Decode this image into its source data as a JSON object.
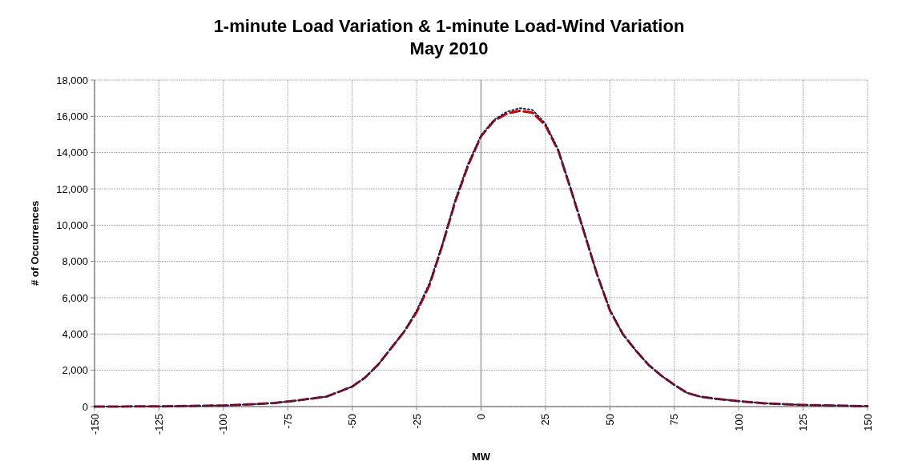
{
  "chart_data": {
    "type": "line",
    "title": "1-minute Load Variation & 1-minute Load-Wind Variation",
    "subtitle": "May 2010",
    "xlabel": "MW",
    "ylabel": "# of Occurrences",
    "x": [
      -150,
      -125,
      -100,
      -90,
      -80,
      -75,
      -70,
      -60,
      -50,
      -45,
      -40,
      -35,
      -30,
      -25,
      -20,
      -15,
      -10,
      -5,
      0,
      5,
      10,
      15,
      20,
      25,
      30,
      35,
      40,
      45,
      50,
      55,
      60,
      65,
      70,
      75,
      80,
      85,
      90,
      100,
      110,
      125,
      150
    ],
    "series": [
      {
        "color": "#cc0000",
        "line_style": "dashed",
        "values": [
          0,
          10,
          60,
          120,
          200,
          280,
          360,
          550,
          1100,
          1600,
          2300,
          3200,
          4100,
          5200,
          6700,
          8900,
          11300,
          13300,
          14900,
          15750,
          16150,
          16300,
          16200,
          15500,
          14100,
          11900,
          9600,
          7300,
          5300,
          4000,
          3100,
          2300,
          1700,
          1200,
          750,
          550,
          450,
          300,
          180,
          90,
          20
        ]
      },
      {
        "color": "#0a2a66",
        "line_style": "dotted",
        "values": [
          0,
          10,
          60,
          120,
          200,
          280,
          360,
          550,
          1100,
          1600,
          2300,
          3200,
          4100,
          5300,
          6800,
          8950,
          11400,
          13400,
          14950,
          15800,
          16250,
          16450,
          16350,
          15600,
          14150,
          11950,
          9650,
          7300,
          5350,
          4000,
          3100,
          2300,
          1700,
          1200,
          750,
          550,
          450,
          300,
          180,
          90,
          20
        ]
      }
    ],
    "xlim": [
      -150,
      150
    ],
    "xticks": [
      -150,
      -125,
      -100,
      -75,
      -50,
      -25,
      0,
      25,
      50,
      75,
      100,
      125,
      150
    ],
    "ylim": [
      0,
      18000
    ],
    "yticks": [
      {
        "value": 0,
        "label": "0"
      },
      {
        "value": 2000,
        "label": "2,000"
      },
      {
        "value": 4000,
        "label": "4,000"
      },
      {
        "value": 6000,
        "label": "6,000"
      },
      {
        "value": 8000,
        "label": "8,000"
      },
      {
        "value": 10000,
        "label": "10,000"
      },
      {
        "value": 12000,
        "label": "12,000"
      },
      {
        "value": 14000,
        "label": "14,000"
      },
      {
        "value": 16000,
        "label": "16,000"
      },
      {
        "value": 18000,
        "label": "18,000"
      }
    ],
    "grid": true,
    "marker": "none",
    "ref_lines": [
      {
        "axis": "x",
        "value": 0,
        "color": "#a0a0a0"
      }
    ]
  }
}
